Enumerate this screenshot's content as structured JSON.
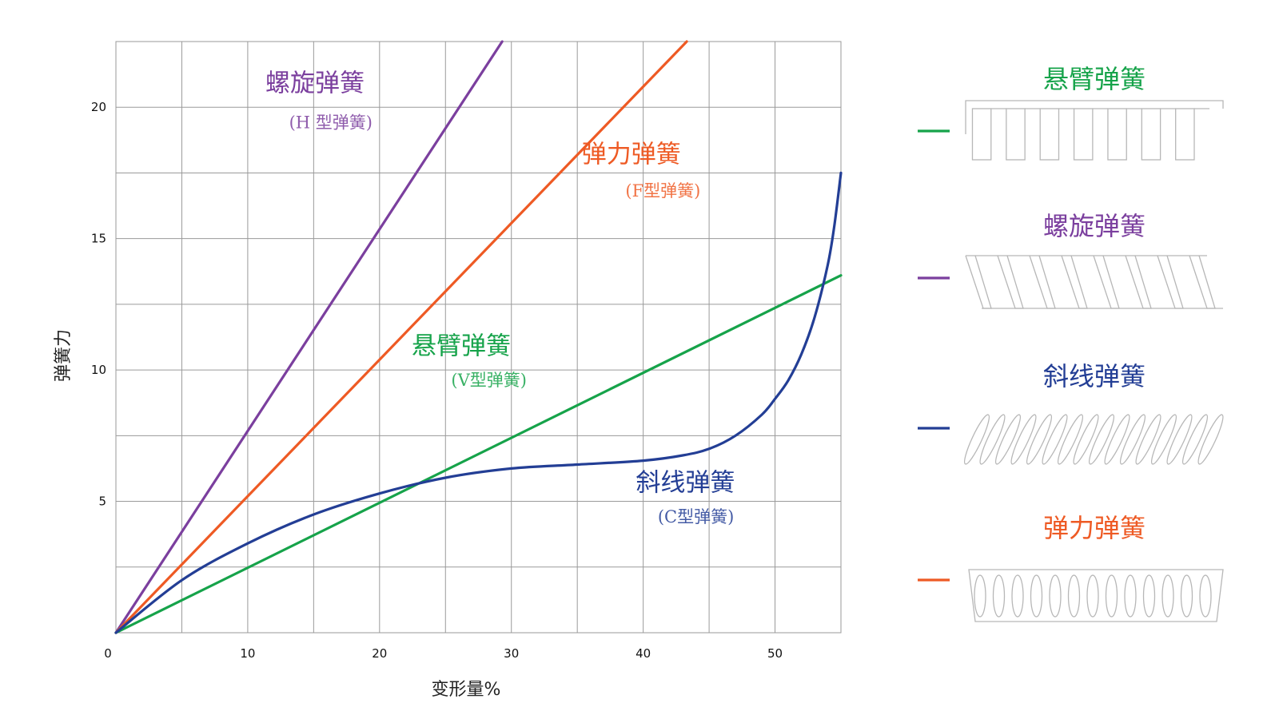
{
  "chart_data": {
    "type": "line",
    "xlabel": "变形量%",
    "ylabel": "弹簧力",
    "xlim": [
      0,
      55
    ],
    "ylim": [
      0,
      22.5
    ],
    "grid": true,
    "x_ticks": [
      {
        "value": 0,
        "label": "0"
      },
      {
        "value": 10,
        "label": "10"
      },
      {
        "value": 20,
        "label": "20"
      },
      {
        "value": 30,
        "label": "30"
      },
      {
        "value": 40,
        "label": "40"
      },
      {
        "value": 50,
        "label": "50"
      }
    ],
    "y_ticks": [
      {
        "value": 5,
        "label": "5"
      },
      {
        "value": 10,
        "label": "10"
      },
      {
        "value": 15,
        "label": "15"
      },
      {
        "value": 20,
        "label": "20"
      }
    ],
    "x_grid": [
      5,
      10,
      15,
      20,
      25,
      30,
      35,
      40,
      45,
      50,
      55
    ],
    "y_grid": [
      2.5,
      5,
      7.5,
      10,
      12.5,
      15,
      17.5,
      20
    ],
    "series": [
      {
        "name": "螺旋弹簧",
        "subtitle": "(H 型弹簧)",
        "color": "#7B3F9E",
        "label_at": [
          15.1,
          20.6
        ],
        "sub_at": [
          16.3,
          19.2
        ],
        "x": [
          0,
          29.3
        ],
        "y": [
          0,
          22.5
        ]
      },
      {
        "name": "弹力弹簧",
        "subtitle": "(F型弹簧)",
        "color": "#EE5A24",
        "label_at": [
          39.1,
          17.9
        ],
        "sub_at": [
          41.5,
          16.6
        ],
        "x": [
          0,
          43.3
        ],
        "y": [
          0,
          22.5
        ]
      },
      {
        "name": "悬臂弹簧",
        "subtitle": "(V型弹簧)",
        "color": "#16A34A",
        "label_at": [
          26.2,
          10.6
        ],
        "sub_at": [
          28.3,
          9.4
        ],
        "x": [
          0,
          55
        ],
        "y": [
          0,
          13.6
        ]
      },
      {
        "name": "斜线弹簧",
        "subtitle": "(C型弹簧)",
        "color": "#233E95",
        "label_at": [
          43.2,
          5.4
        ],
        "sub_at": [
          44.0,
          4.2
        ],
        "x": [
          0,
          5,
          10,
          15,
          20,
          25,
          30,
          35,
          40,
          43,
          45,
          47,
          49,
          50,
          51,
          52,
          53,
          54,
          54.5,
          55
        ],
        "y": [
          0,
          2.0,
          3.4,
          4.5,
          5.3,
          5.9,
          6.25,
          6.4,
          6.55,
          6.75,
          7.0,
          7.5,
          8.3,
          8.9,
          9.6,
          10.6,
          12.0,
          14.0,
          15.5,
          17.5
        ]
      }
    ]
  },
  "legend": {
    "items": [
      {
        "title": "悬臂弹簧",
        "color": "#16A34A",
        "icon": "cantilever-spring-icon"
      },
      {
        "title": "螺旋弹簧",
        "color": "#7B3F9E",
        "icon": "helical-spring-icon"
      },
      {
        "title": "斜线弹簧",
        "color": "#233E95",
        "icon": "canted-coil-spring-icon"
      },
      {
        "title": "弹力弹簧",
        "color": "#EE5A24",
        "icon": "finger-spring-icon"
      }
    ]
  }
}
